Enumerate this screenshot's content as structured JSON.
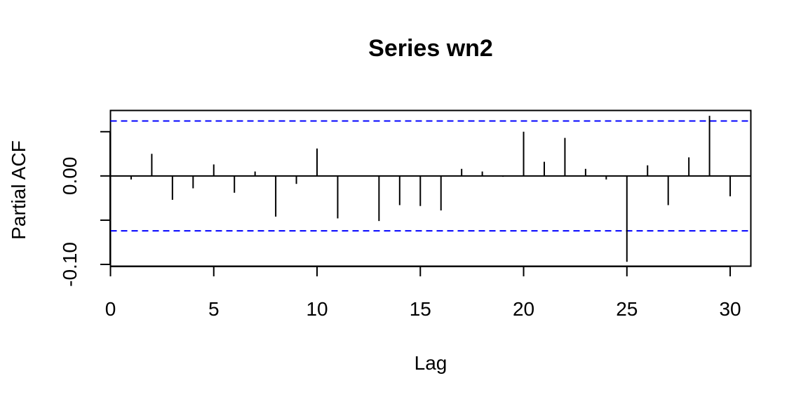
{
  "chart_data": {
    "type": "bar",
    "title": "Series  wn2",
    "xlabel": "Lag",
    "ylabel": "Partial ACF",
    "xlim": [
      0,
      31
    ],
    "ylim": [
      -0.102,
      0.074
    ],
    "x_ticks": [
      0,
      5,
      10,
      15,
      20,
      25,
      30
    ],
    "y_ticks": [
      -0.1,
      0.0
    ],
    "y_ticks_unlabeled": [
      -0.05,
      0.05
    ],
    "y_tick_labels": [
      "-0.10",
      "0.00"
    ],
    "grid": false,
    "legend": "none",
    "confidence_bound": 0.0621,
    "colors": {
      "bars": "#000000",
      "bounds": "#0000ff",
      "zero_line": "#000000"
    },
    "series": [
      {
        "x": [
          1,
          2,
          3,
          4,
          5,
          6,
          7,
          8,
          9,
          10,
          11,
          12,
          13,
          14,
          15,
          16,
          17,
          18,
          19,
          20,
          21,
          22,
          23,
          24,
          25,
          26,
          27,
          28,
          29,
          30
        ],
        "values": [
          -0.004,
          0.025,
          -0.027,
          -0.014,
          0.013,
          -0.019,
          0.005,
          -0.046,
          -0.009,
          0.031,
          -0.048,
          0.0,
          -0.051,
          -0.033,
          -0.034,
          -0.039,
          0.008,
          0.005,
          -0.001,
          0.05,
          0.016,
          0.043,
          0.008,
          -0.004,
          -0.097,
          0.012,
          -0.033,
          0.021,
          0.068,
          -0.023
        ]
      }
    ]
  }
}
